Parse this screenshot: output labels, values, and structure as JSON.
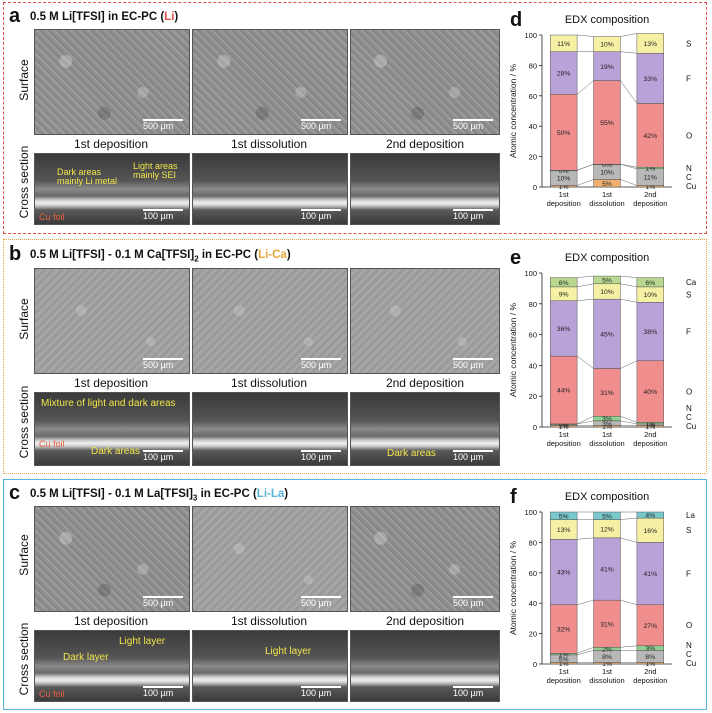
{
  "common": {
    "row_surface": "Surface",
    "row_cross": "Cross section",
    "col_labels": [
      "1st deposition",
      "1st dissolution",
      "2nd deposition"
    ],
    "scale_label": "500 µm",
    "scale_label_small": "100 µm",
    "cu_foil": "Cu foil",
    "chart_title": "EDX composition",
    "ylabel": "Atomic concentration / %"
  },
  "panels": {
    "a": {
      "letter": "a",
      "title_main": "0.5 M Li[TFSI] in EC-PC (",
      "title_tag": "Li",
      "title_end": ")",
      "tag_color": "#e0504a",
      "annotations": [
        "Dark areas",
        "mainly Li metal",
        "Light areas",
        "mainly SEI"
      ]
    },
    "b": {
      "letter": "b",
      "title_main": "0.5 M Li[TFSI] - 0.1 M Ca[TFSI]",
      "title_sub": "2",
      "title_rest": " in EC-PC (",
      "title_tag": "Li-Ca",
      "title_end": ")",
      "tag_color": "#e8a43a",
      "annotations": [
        "Mixture of light and dark areas",
        "Dark areas",
        "Dark areas"
      ]
    },
    "c": {
      "letter": "c",
      "title_main": "0.5 M Li[TFSI] - 0.1 M La[TFSI]",
      "title_sub": "3",
      "title_rest": " in EC-PC (",
      "title_tag": "Li-La",
      "title_end": ")",
      "tag_color": "#5ab4d8",
      "annotations": [
        "Light layer",
        "Dark layer",
        "Light layer"
      ]
    }
  },
  "chart_data": [
    {
      "letter": "d",
      "type": "bar",
      "stacked": true,
      "title": "EDX composition",
      "ylabel": "Atomic concentration / %",
      "ylim": [
        0,
        100
      ],
      "yticks": [
        0,
        20,
        40,
        60,
        80,
        100
      ],
      "categories": [
        "1st\ndeposition",
        "1st\ndissolution",
        "2nd\ndeposition"
      ],
      "series": [
        {
          "name": "Cu",
          "color": "#f0b070",
          "values": [
            1,
            5,
            1
          ],
          "labels": [
            "1%",
            "5%",
            "1%"
          ]
        },
        {
          "name": "C",
          "color": "#b8b8b8",
          "values": [
            10,
            10,
            11
          ],
          "labels": [
            "10%",
            "10%",
            "11%"
          ]
        },
        {
          "name": "N",
          "color": "#8fcf8f",
          "values": [
            0,
            0,
            1
          ],
          "labels": [
            "0%",
            "0%",
            "1%"
          ]
        },
        {
          "name": "O",
          "color": "#f08e8e",
          "values": [
            50,
            55,
            42
          ],
          "labels": [
            "50%",
            "55%",
            "42%"
          ]
        },
        {
          "name": "F",
          "color": "#b9a2d8",
          "values": [
            28,
            19,
            33
          ],
          "labels": [
            "28%",
            "19%",
            "33%"
          ]
        },
        {
          "name": "S",
          "color": "#f6f0a4",
          "values": [
            11,
            10,
            13
          ],
          "labels": [
            "11%",
            "10%",
            "13%"
          ]
        }
      ]
    },
    {
      "letter": "e",
      "type": "bar",
      "stacked": true,
      "title": "EDX composition",
      "ylabel": "Atomic concentration / %",
      "ylim": [
        0,
        100
      ],
      "yticks": [
        0,
        20,
        40,
        60,
        80,
        100
      ],
      "categories": [
        "1st\ndeposition",
        "1st\ndissolution",
        "2nd\ndeposition"
      ],
      "series": [
        {
          "name": "Cu",
          "color": "#f0b070",
          "values": [
            1,
            1,
            1
          ],
          "labels": [
            "1%",
            "1%",
            "1%"
          ]
        },
        {
          "name": "C",
          "color": "#b8b8b8",
          "values": [
            1,
            3,
            1
          ],
          "labels": [
            "1%",
            "3%",
            "1%"
          ]
        },
        {
          "name": "N",
          "color": "#8fcf8f",
          "values": [
            0,
            3,
            1
          ],
          "labels": [
            "0%",
            "3%",
            "1%"
          ]
        },
        {
          "name": "O",
          "color": "#f08e8e",
          "values": [
            44,
            31,
            40
          ],
          "labels": [
            "44%",
            "31%",
            "40%"
          ]
        },
        {
          "name": "F",
          "color": "#b9a2d8",
          "values": [
            36,
            45,
            38
          ],
          "labels": [
            "36%",
            "45%",
            "38%"
          ]
        },
        {
          "name": "S",
          "color": "#f6f0a4",
          "values": [
            9,
            10,
            10
          ],
          "labels": [
            "9%",
            "10%",
            "10%"
          ]
        },
        {
          "name": "Ca",
          "color": "#b8d890",
          "values": [
            6,
            5,
            6
          ],
          "labels": [
            "6%",
            "5%",
            "6%"
          ]
        }
      ]
    },
    {
      "letter": "f",
      "type": "bar",
      "stacked": true,
      "title": "EDX composition",
      "ylabel": "Atomic concentration / %",
      "ylim": [
        0,
        100
      ],
      "yticks": [
        0,
        20,
        40,
        60,
        80,
        100
      ],
      "categories": [
        "1st\ndeposition",
        "1st\ndissolution",
        "2nd\ndeposition"
      ],
      "series": [
        {
          "name": "Cu",
          "color": "#f0b070",
          "values": [
            1,
            1,
            1
          ],
          "labels": [
            "1%",
            "1%",
            "1%"
          ]
        },
        {
          "name": "C",
          "color": "#b8b8b8",
          "values": [
            5,
            8,
            8
          ],
          "labels": [
            "5%",
            "8%",
            "8%"
          ]
        },
        {
          "name": "N",
          "color": "#8fcf8f",
          "values": [
            1,
            2,
            3
          ],
          "labels": [
            "1%",
            "2%",
            "3%"
          ]
        },
        {
          "name": "O",
          "color": "#f08e8e",
          "values": [
            32,
            31,
            27
          ],
          "labels": [
            "32%",
            "31%",
            "27%"
          ]
        },
        {
          "name": "F",
          "color": "#b9a2d8",
          "values": [
            43,
            41,
            41
          ],
          "labels": [
            "43%",
            "41%",
            "41%"
          ]
        },
        {
          "name": "S",
          "color": "#f6f0a4",
          "values": [
            13,
            12,
            16
          ],
          "labels": [
            "13%",
            "12%",
            "16%"
          ]
        },
        {
          "name": "La",
          "color": "#78c8cc",
          "values": [
            5,
            5,
            4
          ],
          "labels": [
            "5%",
            "5%",
            "4%"
          ]
        }
      ]
    }
  ]
}
